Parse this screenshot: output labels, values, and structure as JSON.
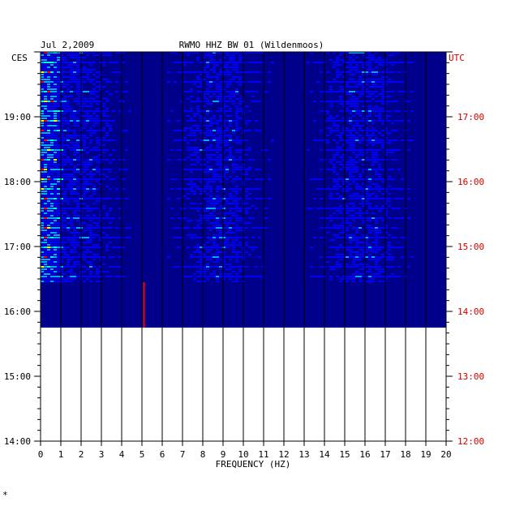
{
  "chart_data": {
    "type": "heatmap",
    "date": "Jul 2,2009",
    "title": "RWMO HHZ BW 01 (Wildenmoos)",
    "xlabel": "FREQUENCY (HZ)",
    "left_timezone": "CES",
    "right_timezone": "UTC",
    "x_ticks": [
      "0",
      "1",
      "2",
      "3",
      "4",
      "5",
      "6",
      "7",
      "8",
      "9",
      "10",
      "11",
      "12",
      "13",
      "14",
      "15",
      "16",
      "17",
      "18",
      "19",
      "20"
    ],
    "xlim": [
      0,
      20
    ],
    "left_ticks": [
      "19:00",
      "18:00",
      "17:00",
      "16:00",
      "15:00",
      "14:00"
    ],
    "right_ticks": [
      "17:00",
      "16:00",
      "15:00",
      "14:00",
      "13:00",
      "12:00"
    ],
    "time_range_ces": [
      "14:00",
      "20:00"
    ],
    "data_end_ces": "15:45",
    "active_signal_start_ces": "16:27",
    "colormap": [
      "#00008b",
      "#0000ff",
      "#00aaff",
      "#00ffcc",
      "#ffff00",
      "#ff0000"
    ],
    "text_colors": {
      "left": "#000000",
      "right": "#cc0000"
    }
  },
  "footer_mark": "*"
}
